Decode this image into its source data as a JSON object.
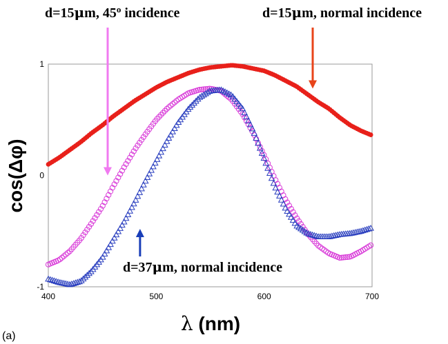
{
  "chart_data": {
    "type": "scatter",
    "xlabel": "λ (nm)",
    "ylabel": "cos(Δφ)",
    "xlim": [
      400,
      700
    ],
    "ylim": [
      -1,
      1
    ],
    "xticks": [
      400,
      500,
      600,
      700
    ],
    "yticks": [
      -1,
      0,
      1
    ],
    "grid": false,
    "panel_label": "(a)",
    "series": [
      {
        "name": "d=15μm, normal incidence",
        "color": "#e8201a",
        "marker": "filled-circle",
        "points": [
          [
            400,
            0.1
          ],
          [
            410,
            0.16
          ],
          [
            420,
            0.23
          ],
          [
            430,
            0.3
          ],
          [
            440,
            0.38
          ],
          [
            450,
            0.45
          ],
          [
            460,
            0.53
          ],
          [
            470,
            0.6
          ],
          [
            480,
            0.67
          ],
          [
            490,
            0.73
          ],
          [
            500,
            0.79
          ],
          [
            510,
            0.84
          ],
          [
            520,
            0.88
          ],
          [
            530,
            0.92
          ],
          [
            540,
            0.95
          ],
          [
            550,
            0.97
          ],
          [
            560,
            0.98
          ],
          [
            570,
            0.99
          ],
          [
            580,
            0.98
          ],
          [
            590,
            0.96
          ],
          [
            600,
            0.94
          ],
          [
            610,
            0.9
          ],
          [
            620,
            0.85
          ],
          [
            630,
            0.8
          ],
          [
            640,
            0.73
          ],
          [
            650,
            0.66
          ],
          [
            660,
            0.6
          ],
          [
            670,
            0.52
          ],
          [
            680,
            0.45
          ],
          [
            690,
            0.4
          ],
          [
            700,
            0.36
          ]
        ]
      },
      {
        "name": "d=15μm, 45° incidence",
        "color": "#d838d8",
        "marker": "open-circle",
        "points": [
          [
            400,
            -0.8
          ],
          [
            410,
            -0.76
          ],
          [
            420,
            -0.68
          ],
          [
            430,
            -0.57
          ],
          [
            440,
            -0.43
          ],
          [
            450,
            -0.28
          ],
          [
            460,
            -0.1
          ],
          [
            470,
            0.07
          ],
          [
            480,
            0.23
          ],
          [
            490,
            0.37
          ],
          [
            500,
            0.5
          ],
          [
            510,
            0.6
          ],
          [
            520,
            0.68
          ],
          [
            530,
            0.74
          ],
          [
            540,
            0.77
          ],
          [
            550,
            0.78
          ],
          [
            560,
            0.76
          ],
          [
            570,
            0.68
          ],
          [
            580,
            0.55
          ],
          [
            590,
            0.38
          ],
          [
            600,
            0.18
          ],
          [
            610,
            -0.03
          ],
          [
            620,
            -0.22
          ],
          [
            630,
            -0.38
          ],
          [
            640,
            -0.52
          ],
          [
            650,
            -0.63
          ],
          [
            660,
            -0.7
          ],
          [
            670,
            -0.74
          ],
          [
            680,
            -0.73
          ],
          [
            690,
            -0.68
          ],
          [
            700,
            -0.62
          ]
        ]
      },
      {
        "name": "d=37μm, normal incidence",
        "color": "#2a3fbf",
        "marker": "open-triangle",
        "points": [
          [
            400,
            -0.93
          ],
          [
            410,
            -0.96
          ],
          [
            420,
            -0.98
          ],
          [
            430,
            -0.95
          ],
          [
            440,
            -0.86
          ],
          [
            450,
            -0.74
          ],
          [
            460,
            -0.58
          ],
          [
            470,
            -0.42
          ],
          [
            480,
            -0.24
          ],
          [
            490,
            -0.05
          ],
          [
            500,
            0.13
          ],
          [
            510,
            0.31
          ],
          [
            520,
            0.47
          ],
          [
            530,
            0.6
          ],
          [
            540,
            0.7
          ],
          [
            550,
            0.76
          ],
          [
            560,
            0.77
          ],
          [
            570,
            0.72
          ],
          [
            580,
            0.6
          ],
          [
            590,
            0.4
          ],
          [
            600,
            0.15
          ],
          [
            610,
            -0.1
          ],
          [
            620,
            -0.3
          ],
          [
            630,
            -0.45
          ],
          [
            640,
            -0.52
          ],
          [
            650,
            -0.55
          ],
          [
            660,
            -0.55
          ],
          [
            670,
            -0.53
          ],
          [
            680,
            -0.52
          ],
          [
            690,
            -0.5
          ],
          [
            700,
            -0.47
          ]
        ]
      }
    ],
    "annotations": [
      {
        "text": "d=15μm, 45° incidence",
        "color": "#f07af0",
        "target": [
          455,
          0.0
        ]
      },
      {
        "text": "d=15μm, normal incidence",
        "color": "#e8441a",
        "target": [
          645,
          0.78
        ]
      },
      {
        "text": "d=37μm, normal incidence",
        "color": "#1a3fb8",
        "target": [
          485,
          -0.48
        ]
      }
    ]
  }
}
